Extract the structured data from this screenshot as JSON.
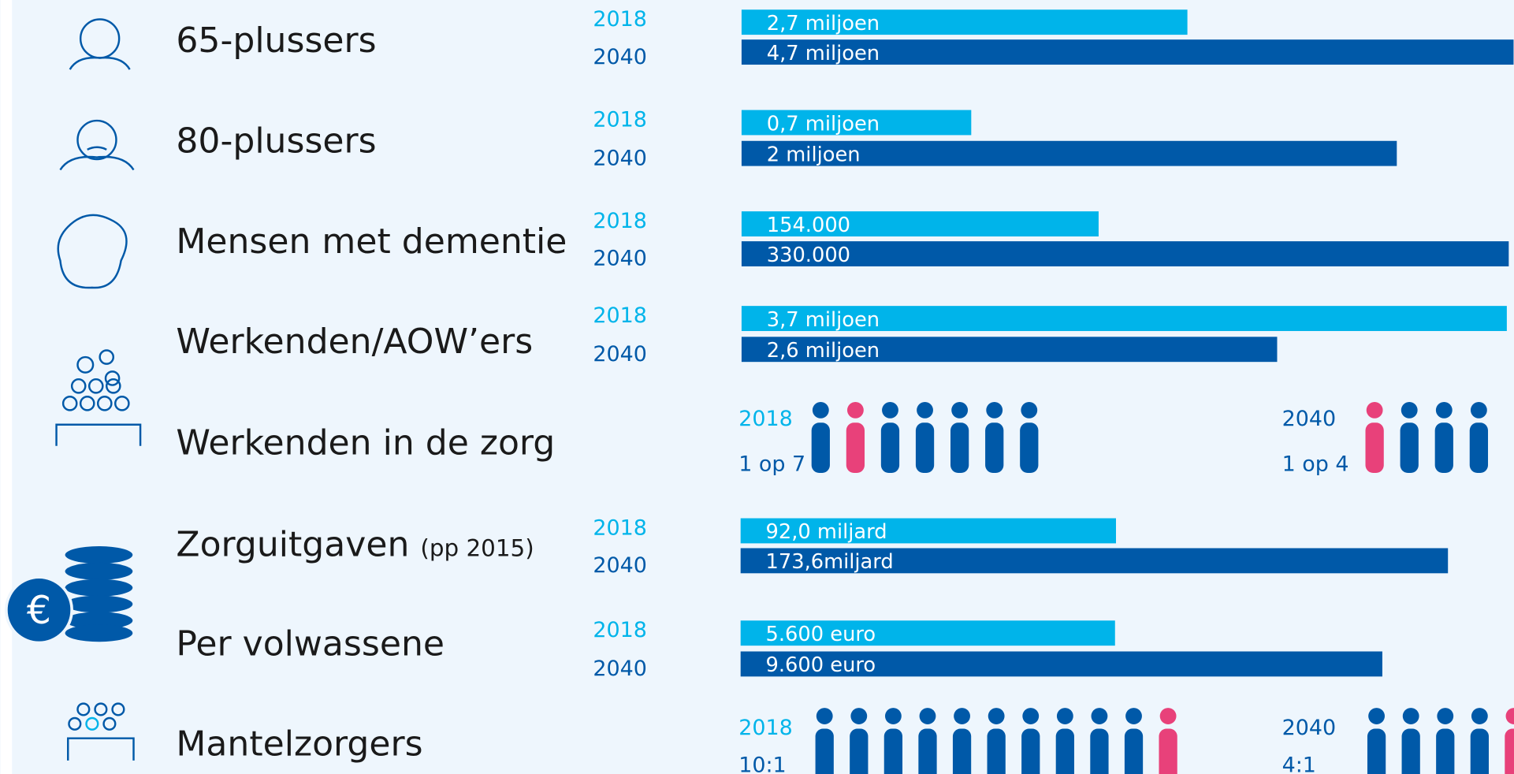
{
  "rows": [
    {
      "label": "65-plussers",
      "years": [
        "2018",
        "2040"
      ],
      "values": [
        "2,7 miljoen",
        "4,7 miljoen"
      ]
    },
    {
      "label": "80-plussers",
      "years": [
        "2018",
        "2040"
      ],
      "values": [
        "0,7 miljoen",
        "2 miljoen"
      ]
    },
    {
      "label": "Mensen met dementie",
      "years": [
        "2018",
        "2040"
      ],
      "values": [
        "154.000",
        "330.000"
      ]
    },
    {
      "label": "Werkenden/AOW’ers",
      "years": [
        "2018",
        "2040"
      ],
      "values": [
        "3,7 miljoen",
        "2,6 miljoen"
      ]
    },
    {
      "label": "Werkenden in de zorg",
      "years": [
        "2018",
        "2040"
      ],
      "values": [
        "1 op 7",
        "1 op 4"
      ]
    },
    {
      "label": "Zorguitgaven",
      "note": "(pp 2015)",
      "years": [
        "2018",
        "2040"
      ],
      "values": [
        "92,0 miljard",
        "173,6miljard"
      ]
    },
    {
      "label": "Per volwassene",
      "years": [
        "2018",
        "2040"
      ],
      "values": [
        "5.600 euro",
        "9.600 euro"
      ]
    },
    {
      "label": "Mantelzorgers",
      "years": [
        "2018",
        "2040"
      ],
      "values": [
        "10:1",
        "4:1"
      ]
    }
  ],
  "euro_symbol": "€"
}
